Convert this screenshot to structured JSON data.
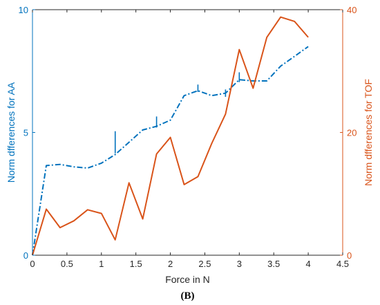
{
  "chart_data": {
    "type": "line",
    "xlabel": "Force in N",
    "ylabel_left": "Norm dfferences for AA",
    "ylabel_right": "Norm dfferences for TOF",
    "panel_label": "(B)",
    "xlim": [
      0,
      4.5
    ],
    "ylim_left": [
      0,
      10
    ],
    "ylim_right": [
      0,
      40
    ],
    "x_ticks": [
      0,
      0.5,
      1,
      1.5,
      2,
      2.5,
      3,
      3.5,
      4,
      4.5
    ],
    "x_tick_labels": [
      "0",
      "0.5",
      "1",
      "1.5",
      "2",
      "2.5",
      "3",
      "3.5",
      "4",
      "4.5"
    ],
    "y_left_ticks": [
      0,
      5,
      10
    ],
    "y_left_tick_labels": [
      "0",
      "5",
      "10"
    ],
    "y_right_ticks": [
      0,
      20,
      40
    ],
    "y_right_tick_labels": [
      "0",
      "20",
      "40"
    ],
    "grid": false,
    "colors": {
      "left_axis": "#0072BD",
      "right_axis": "#D95319",
      "frame": "#262626"
    },
    "series": [
      {
        "axis": "left",
        "color": "#0072BD",
        "line_style": "dash-dot",
        "x": [
          0,
          0.2,
          0.4,
          0.6,
          0.8,
          1.0,
          1.2,
          1.4,
          1.6,
          1.8,
          2.0,
          2.2,
          2.4,
          2.6,
          2.8,
          3.0,
          3.2,
          3.4,
          3.6,
          3.8,
          4.0
        ],
        "values": [
          0,
          3.65,
          3.7,
          3.6,
          3.55,
          3.75,
          4.1,
          4.6,
          5.1,
          5.25,
          5.5,
          6.5,
          6.7,
          6.5,
          6.6,
          7.15,
          7.1,
          7.1,
          7.7,
          8.1,
          8.5
        ],
        "error_bars": [
          {
            "x": 1.2,
            "low": 4.15,
            "high": 5.05
          },
          {
            "x": 1.8,
            "low": 5.2,
            "high": 5.65
          },
          {
            "x": 2.4,
            "low": 6.65,
            "high": 6.95
          },
          {
            "x": 2.8,
            "low": 6.45,
            "high": 6.75
          },
          {
            "x": 3.0,
            "low": 7.05,
            "high": 7.45
          }
        ]
      },
      {
        "axis": "right",
        "color": "#D95319",
        "line_style": "solid",
        "x": [
          0,
          0.2,
          0.4,
          0.6,
          0.8,
          1.0,
          1.2,
          1.4,
          1.6,
          1.8,
          2.0,
          2.2,
          2.4,
          2.6,
          2.8,
          3.0,
          3.2,
          3.4,
          3.6,
          3.8,
          4.0
        ],
        "values": [
          0,
          7.5,
          4.5,
          5.6,
          7.4,
          6.8,
          2.5,
          11.8,
          5.9,
          16.5,
          19.2,
          11.5,
          12.8,
          18.2,
          23.0,
          33.5,
          27.2,
          35.5,
          38.8,
          38.1,
          35.5
        ]
      }
    ]
  }
}
